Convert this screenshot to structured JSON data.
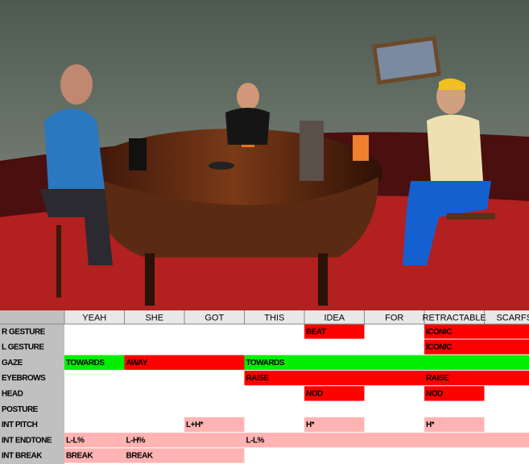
{
  "table": {
    "columns": [
      "YEAH",
      "SHE",
      "GOT",
      "THIS",
      "IDEA",
      "FOR",
      "RETRACTABLE",
      "SCARFS"
    ],
    "colors": {
      "red": "#ff0000",
      "green": "#00ee00",
      "pink": "#ffb3b3"
    },
    "rows": [
      {
        "label": "R GESTURE",
        "spans": [
          {
            "text": "BEAT",
            "start": 4,
            "end": 5,
            "color": "red"
          },
          {
            "text": "ICONIC",
            "start": 6,
            "end": 8,
            "color": "red"
          }
        ]
      },
      {
        "label": "L GESTURE",
        "spans": [
          {
            "text": "ICONIC",
            "start": 6,
            "end": 8,
            "color": "red"
          }
        ]
      },
      {
        "label": "GAZE",
        "spans": [
          {
            "text": "TOWARDS",
            "start": 0,
            "end": 1,
            "color": "green"
          },
          {
            "text": "AWAY",
            "start": 1,
            "end": 3,
            "color": "red"
          },
          {
            "text": "TOWARDS",
            "start": 3,
            "end": 8,
            "color": "green"
          }
        ]
      },
      {
        "label": "EYEBROWS",
        "spans": [
          {
            "text": "RAISE",
            "start": 3,
            "end": 6,
            "color": "red"
          },
          {
            "text": "RAISE",
            "start": 6,
            "end": 8,
            "color": "red"
          }
        ]
      },
      {
        "label": "HEAD",
        "spans": [
          {
            "text": "NOD",
            "start": 4,
            "end": 5,
            "color": "red"
          },
          {
            "text": "NOD",
            "start": 6,
            "end": 7,
            "color": "red"
          }
        ]
      },
      {
        "label": "POSTURE",
        "spans": []
      },
      {
        "label": "INT PITCH",
        "spans": [
          {
            "text": "L+H*",
            "start": 2,
            "end": 3,
            "color": "pink"
          },
          {
            "text": "H*",
            "start": 4,
            "end": 5,
            "color": "pink"
          },
          {
            "text": "H*",
            "start": 6,
            "end": 7,
            "color": "pink"
          }
        ]
      },
      {
        "label": "INT ENDTONE",
        "spans": [
          {
            "text": "L-L%",
            "start": 0,
            "end": 1,
            "color": "pink"
          },
          {
            "text": "L-H%",
            "start": 1,
            "end": 3,
            "color": "pink"
          },
          {
            "text": "L-L%",
            "start": 3,
            "end": 8,
            "color": "pink"
          }
        ]
      },
      {
        "label": "INT BREAK",
        "spans": [
          {
            "text": "BREAK",
            "start": 0,
            "end": 1,
            "color": "pink"
          },
          {
            "text": "BREAK",
            "start": 1,
            "end": 3,
            "color": "pink"
          }
        ]
      }
    ]
  }
}
